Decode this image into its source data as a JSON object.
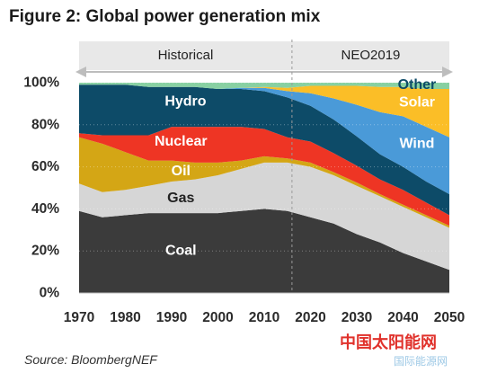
{
  "title": "Figure 2: Global power generation mix",
  "source": "Source: BloombergNEF",
  "watermark": {
    "main": "中国太阳能网",
    "sub": "国际能源网"
  },
  "chart_data": {
    "type": "area",
    "stacked": true,
    "title": "Figure 2: Global power generation mix",
    "xlim": [
      1970,
      2050
    ],
    "ylim": [
      0,
      100
    ],
    "x_ticks": [
      1970,
      1980,
      1990,
      2000,
      2010,
      2020,
      2030,
      2040,
      2050
    ],
    "x_tick_labels": [
      "1970",
      "1980",
      "1990",
      "2000",
      "2010",
      "2020",
      "2030",
      "2040",
      "2050"
    ],
    "y_ticks": [
      0,
      20,
      40,
      60,
      80,
      100
    ],
    "y_tick_labels": [
      "0%",
      "20%",
      "40%",
      "60%",
      "80%",
      "100%"
    ],
    "periods": [
      {
        "label": "Historical",
        "start": 1970,
        "end": 2016
      },
      {
        "label": "NEO2019",
        "start": 2016,
        "end": 2050
      }
    ],
    "divider_x": 2016,
    "x": [
      1970,
      1975,
      1980,
      1985,
      1990,
      1995,
      2000,
      2005,
      2010,
      2015,
      2020,
      2025,
      2030,
      2035,
      2040,
      2045,
      2050
    ],
    "series": [
      {
        "name": "Coal",
        "color": "#3b3b3b",
        "values": [
          39,
          36,
          37,
          38,
          38,
          38,
          38,
          39,
          40,
          39,
          36,
          33,
          28,
          24,
          19,
          15,
          11
        ]
      },
      {
        "name": "Gas",
        "color": "#d6d6d6",
        "values": [
          13,
          12,
          12,
          13,
          15,
          16,
          18,
          20,
          22,
          23,
          24,
          23,
          23,
          22,
          22,
          21,
          20
        ]
      },
      {
        "name": "Oil",
        "color": "#d4a615",
        "values": [
          22,
          23,
          18,
          12,
          10,
          8,
          6,
          4,
          3,
          2,
          2,
          1.5,
          1.5,
          1,
          1,
          1,
          1
        ]
      },
      {
        "name": "Nuclear",
        "color": "#ee3524",
        "values": [
          2,
          4,
          8,
          12,
          16,
          17,
          17,
          16,
          13,
          10,
          10,
          9,
          8,
          7,
          7,
          6,
          5
        ]
      },
      {
        "name": "Hydro",
        "color": "#0d4b68",
        "values": [
          23,
          24,
          24,
          23,
          19,
          19,
          18,
          18,
          18,
          19,
          17,
          16,
          14,
          12,
          11,
          10,
          10
        ]
      },
      {
        "name": "Wind",
        "color": "#4a9ad8",
        "values": [
          0,
          0,
          0,
          0,
          0,
          0,
          0,
          0.5,
          1.5,
          3,
          6,
          10,
          15,
          20,
          24,
          26,
          27
        ]
      },
      {
        "name": "Solar",
        "color": "#fbbe27",
        "values": [
          0,
          0,
          0,
          0,
          0,
          0,
          0,
          0,
          0.5,
          1.5,
          3.5,
          6,
          9,
          12,
          14,
          18,
          23
        ]
      },
      {
        "name": "Other",
        "color": "#88d0a2",
        "values": [
          1,
          1,
          1,
          2,
          2,
          2,
          3,
          2.5,
          2,
          2.5,
          1.5,
          1.5,
          1.5,
          2,
          2,
          3,
          3
        ]
      }
    ],
    "series_label_positions": {
      "Coal": [
        1992,
        20
      ],
      "Gas": [
        1992,
        45
      ],
      "Oil": [
        1992,
        58
      ],
      "Nuclear": [
        1992,
        72
      ],
      "Hydro": [
        1993,
        91
      ],
      "Wind": [
        2043,
        71
      ],
      "Solar": [
        2043,
        90.5
      ],
      "Other": [
        2043,
        99
      ]
    }
  }
}
